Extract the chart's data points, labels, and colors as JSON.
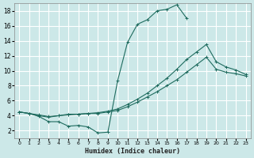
{
  "xlabel": "Humidex (Indice chaleur)",
  "bg_color": "#cce8e8",
  "grid_color": "#ffffff",
  "line_color": "#1e6b5e",
  "xlim": [
    -0.5,
    23.5
  ],
  "ylim": [
    1,
    19
  ],
  "xticks": [
    0,
    1,
    2,
    3,
    4,
    5,
    6,
    7,
    8,
    9,
    10,
    11,
    12,
    13,
    14,
    15,
    16,
    17,
    18,
    19,
    20,
    21,
    22,
    23
  ],
  "yticks": [
    2,
    4,
    6,
    8,
    10,
    12,
    14,
    16,
    18
  ],
  "curve1_x": [
    0,
    1,
    2,
    3,
    4,
    5,
    6,
    7,
    8,
    9,
    10,
    11,
    12,
    13,
    14,
    15,
    16,
    17,
    18,
    19,
    20,
    21,
    22,
    23
  ],
  "curve1_y": [
    4.5,
    4.3,
    4.0,
    3.8,
    4.0,
    4.1,
    4.2,
    4.3,
    4.3,
    4.5,
    4.7,
    5.2,
    5.8,
    6.5,
    7.2,
    8.0,
    8.8,
    9.8,
    10.8,
    11.8,
    10.2,
    9.8,
    9.6,
    9.3
  ],
  "curve2_x": [
    0,
    1,
    2,
    3,
    4,
    5,
    6,
    7,
    8,
    9,
    10,
    11,
    12,
    13,
    14,
    15,
    16,
    17
  ],
  "curve2_y": [
    4.5,
    4.3,
    3.9,
    3.2,
    3.2,
    2.6,
    2.7,
    2.5,
    1.7,
    1.8,
    8.7,
    13.8,
    16.2,
    16.8,
    18.0,
    18.2,
    18.8,
    17.0
  ],
  "curve3_x": [
    0,
    1,
    2,
    3,
    4,
    5,
    6,
    7,
    8,
    9,
    10,
    11,
    12,
    13,
    14,
    15,
    16,
    17,
    18,
    19,
    20,
    21,
    22,
    23
  ],
  "curve3_y": [
    4.5,
    4.3,
    4.1,
    3.9,
    4.0,
    4.2,
    4.2,
    4.3,
    4.4,
    4.6,
    4.9,
    5.5,
    6.2,
    7.0,
    8.0,
    9.0,
    10.2,
    11.5,
    12.5,
    13.5,
    11.2,
    10.5,
    10.1,
    9.5
  ]
}
